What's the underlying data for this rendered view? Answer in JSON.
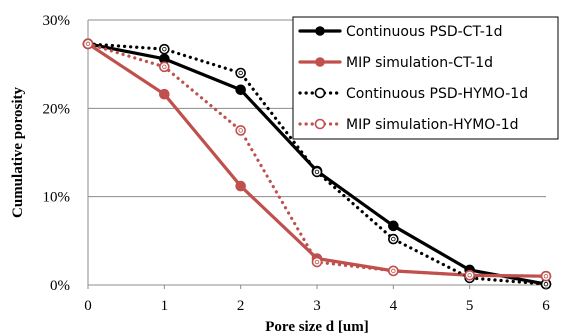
{
  "chart_data": {
    "type": "line",
    "xlabel": "Pore size d [um]",
    "ylabel": "Cumulative porosity",
    "xlim": [
      0,
      6
    ],
    "ylim": [
      0,
      0.3
    ],
    "x_ticks": [
      "0",
      "1",
      "2",
      "3",
      "4",
      "5",
      "6"
    ],
    "y_ticks": [
      "0%",
      "10%",
      "20%",
      "30%"
    ],
    "grid": "horizontal",
    "legend_position": "top-right",
    "series": [
      {
        "name": "Continuous PSD-CT-1d",
        "color": "#000000",
        "line_style": "solid",
        "marker": "filled-circle",
        "x": [
          0,
          1,
          2,
          3,
          4,
          5,
          6
        ],
        "y": [
          0.273,
          0.256,
          0.221,
          0.129,
          0.067,
          0.017,
          0.001
        ]
      },
      {
        "name": "MIP simulation-CT-1d",
        "color": "#c0504d",
        "line_style": "solid",
        "marker": "filled-circle",
        "x": [
          0,
          1,
          2,
          3,
          4,
          5,
          6
        ],
        "y": [
          0.273,
          0.216,
          0.112,
          0.03,
          0.016,
          0.011,
          0.01
        ]
      },
      {
        "name": "Continuous PSD-HYMO-1d",
        "color": "#000000",
        "line_style": "dotted",
        "marker": "open-circle",
        "x": [
          0,
          1,
          2,
          3,
          4,
          5,
          6
        ],
        "y": [
          0.273,
          0.267,
          0.24,
          0.128,
          0.052,
          0.008,
          0.001
        ]
      },
      {
        "name": "MIP simulation-HYMO-1d",
        "color": "#c0504d",
        "line_style": "dotted",
        "marker": "open-circle",
        "x": [
          0,
          1,
          2,
          3,
          4,
          5,
          6
        ],
        "y": [
          0.273,
          0.247,
          0.175,
          0.026,
          0.016,
          0.011,
          0.01
        ]
      }
    ]
  }
}
